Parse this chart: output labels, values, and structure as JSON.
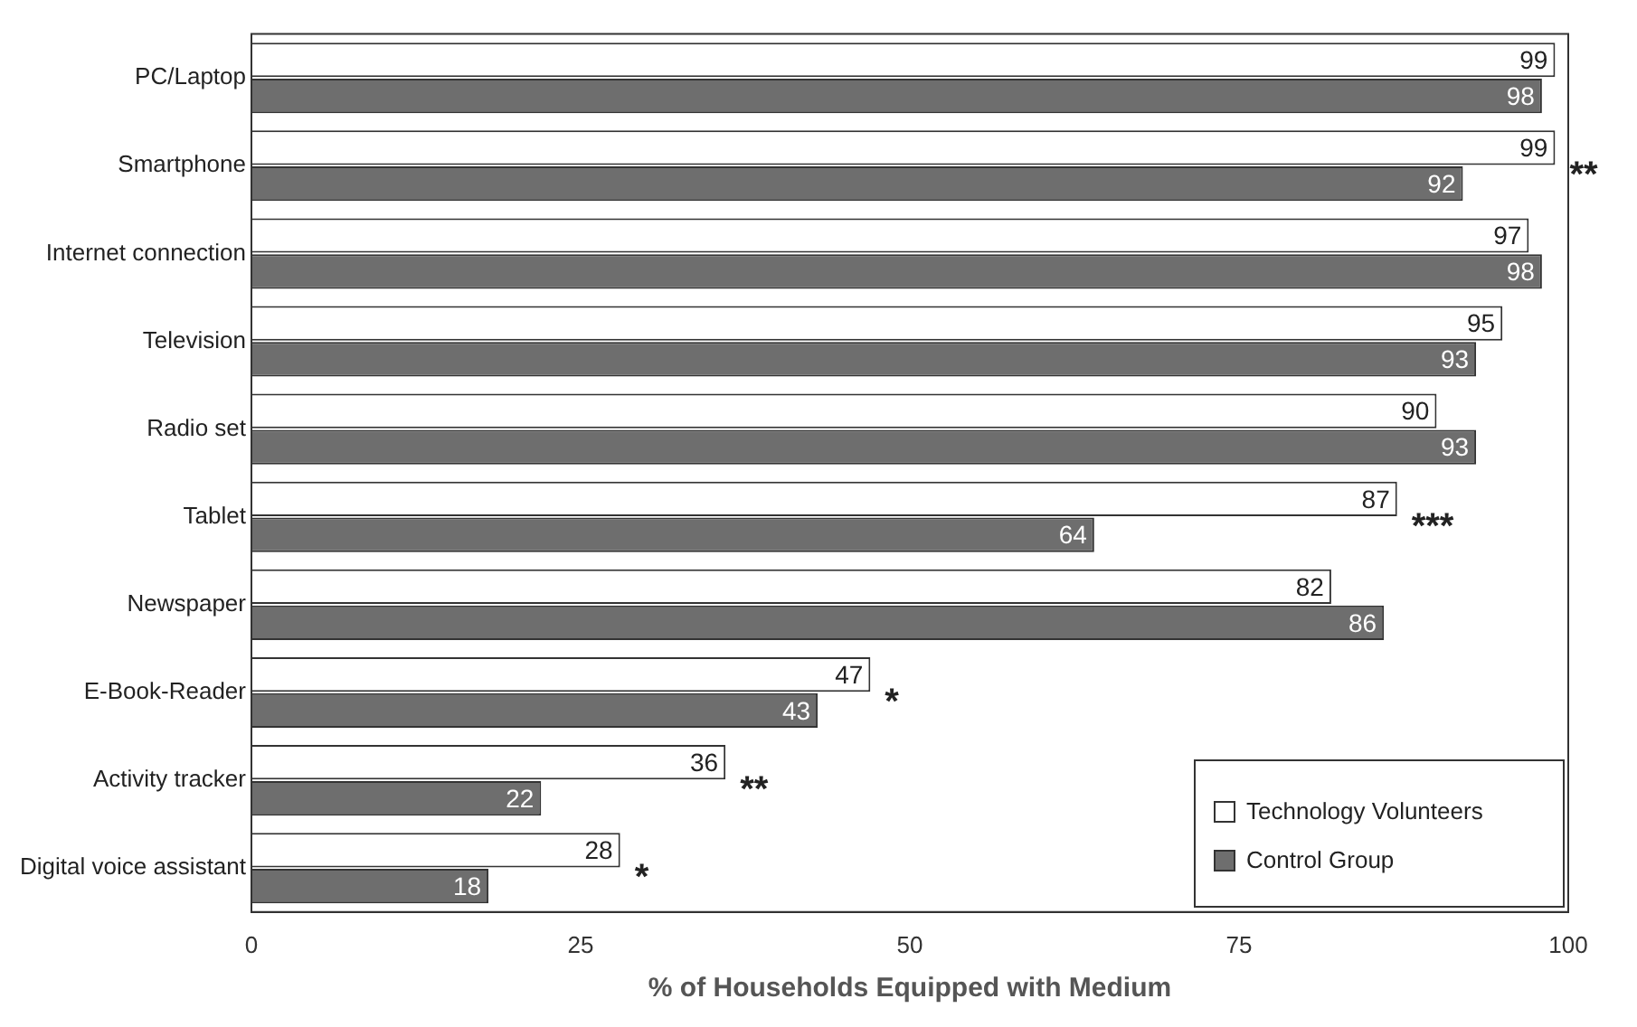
{
  "chart_data": {
    "type": "bar",
    "orientation": "horizontal",
    "xlabel": "% of Households Equipped with Medium",
    "categories": [
      "PC/Laptop",
      "Smartphone",
      "Internet connection",
      "Television",
      "Radio set",
      "Tablet",
      "Newspaper",
      "E-Book-Reader",
      "Activity tracker",
      "Digital voice assistant"
    ],
    "series": [
      {
        "name": "Technology Volunteers",
        "color": "#ffffff",
        "values": [
          99,
          99,
          97,
          95,
          90,
          87,
          82,
          47,
          36,
          28
        ]
      },
      {
        "name": "Control Group",
        "color": "#6e6e6e",
        "values": [
          98,
          92,
          98,
          93,
          93,
          64,
          86,
          43,
          22,
          18
        ]
      }
    ],
    "xlim": [
      0,
      100
    ],
    "xticks": [
      0,
      25,
      50,
      75,
      100
    ],
    "grid": false,
    "legend": "bottom right",
    "data_labels": true,
    "annotations": [
      "**",
      "***",
      "*",
      "**",
      "*"
    ]
  }
}
